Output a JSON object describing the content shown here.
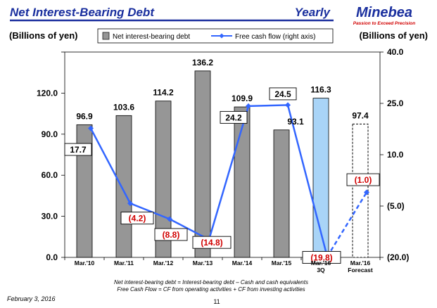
{
  "header": {
    "title": "Net Interest-Bearing Debt",
    "tag": "Yearly",
    "brand": "Minebea",
    "brand_tagline": "Passion to Exceed Precision"
  },
  "footer": {
    "note_1": "Net interest-bearing debt = Interest-bearing debt – Cash and cash equivalents",
    "note_2": "Free Cash Flow = CF from operating activities + CF from investing activities",
    "date": "February 3, 2016",
    "page": "11"
  },
  "colors": {
    "title": "#1a2f9e",
    "brand": "#1a2f9e",
    "brand_tagline": "#d10000",
    "rule": "#1a2f9e",
    "bar_actual": "#969696",
    "bar_3q": "#a9d4f7",
    "line": "#3366ff",
    "negative_label": "#d10000"
  },
  "chart_data": {
    "type": "bar",
    "ylabel_left": "(Billions of yen)",
    "ylabel_right": "(Billions of yen)",
    "left_axis": {
      "min": 0,
      "max": 150,
      "ticks": [
        "0.0",
        "30.0",
        "60.0",
        "90.0",
        "120.0"
      ],
      "tick_values": [
        0,
        30,
        60,
        90,
        120
      ]
    },
    "right_axis": {
      "min": -20,
      "max": 40,
      "ticks": [
        "(20.0)",
        "(5.0)",
        "10.0",
        "25.0",
        "40.0"
      ],
      "tick_values": [
        -20,
        -5,
        10,
        25,
        40
      ]
    },
    "categories": [
      {
        "label": "Mar.'10",
        "label2": ""
      },
      {
        "label": "Mar.'11",
        "label2": ""
      },
      {
        "label": "Mar.'12",
        "label2": ""
      },
      {
        "label": "Mar.'13",
        "label2": ""
      },
      {
        "label": "Mar.'14",
        "label2": ""
      },
      {
        "label": "Mar.'15",
        "label2": ""
      },
      {
        "label": "Mar.'16",
        "label2": "3Q"
      },
      {
        "label": "Mar.'16",
        "label2": "Forecast"
      }
    ],
    "series": [
      {
        "name": "Net interest-bearing debt",
        "axis": "left",
        "values": [
          96.9,
          103.6,
          114.2,
          136.2,
          109.9,
          93.1,
          116.3,
          97.4
        ],
        "labels": [
          "96.9",
          "103.6",
          "114.2",
          "136.2",
          "109.9",
          "93.1",
          "116.3",
          "97.4"
        ],
        "styles": [
          "actual",
          "actual",
          "actual",
          "actual",
          "actual",
          "actual",
          "3q",
          "forecast"
        ]
      },
      {
        "name": "Free cash flow (right axis)",
        "axis": "right",
        "values": [
          17.7,
          -4.2,
          -8.8,
          -14.8,
          24.2,
          24.5,
          -19.8,
          -1.0
        ],
        "labels": [
          "17.7",
          "(4.2)",
          "(8.8)",
          "(14.8)",
          "24.2",
          "24.5",
          "(19.8)",
          "(1.0)"
        ],
        "dashed_last_segment": true
      }
    ]
  }
}
